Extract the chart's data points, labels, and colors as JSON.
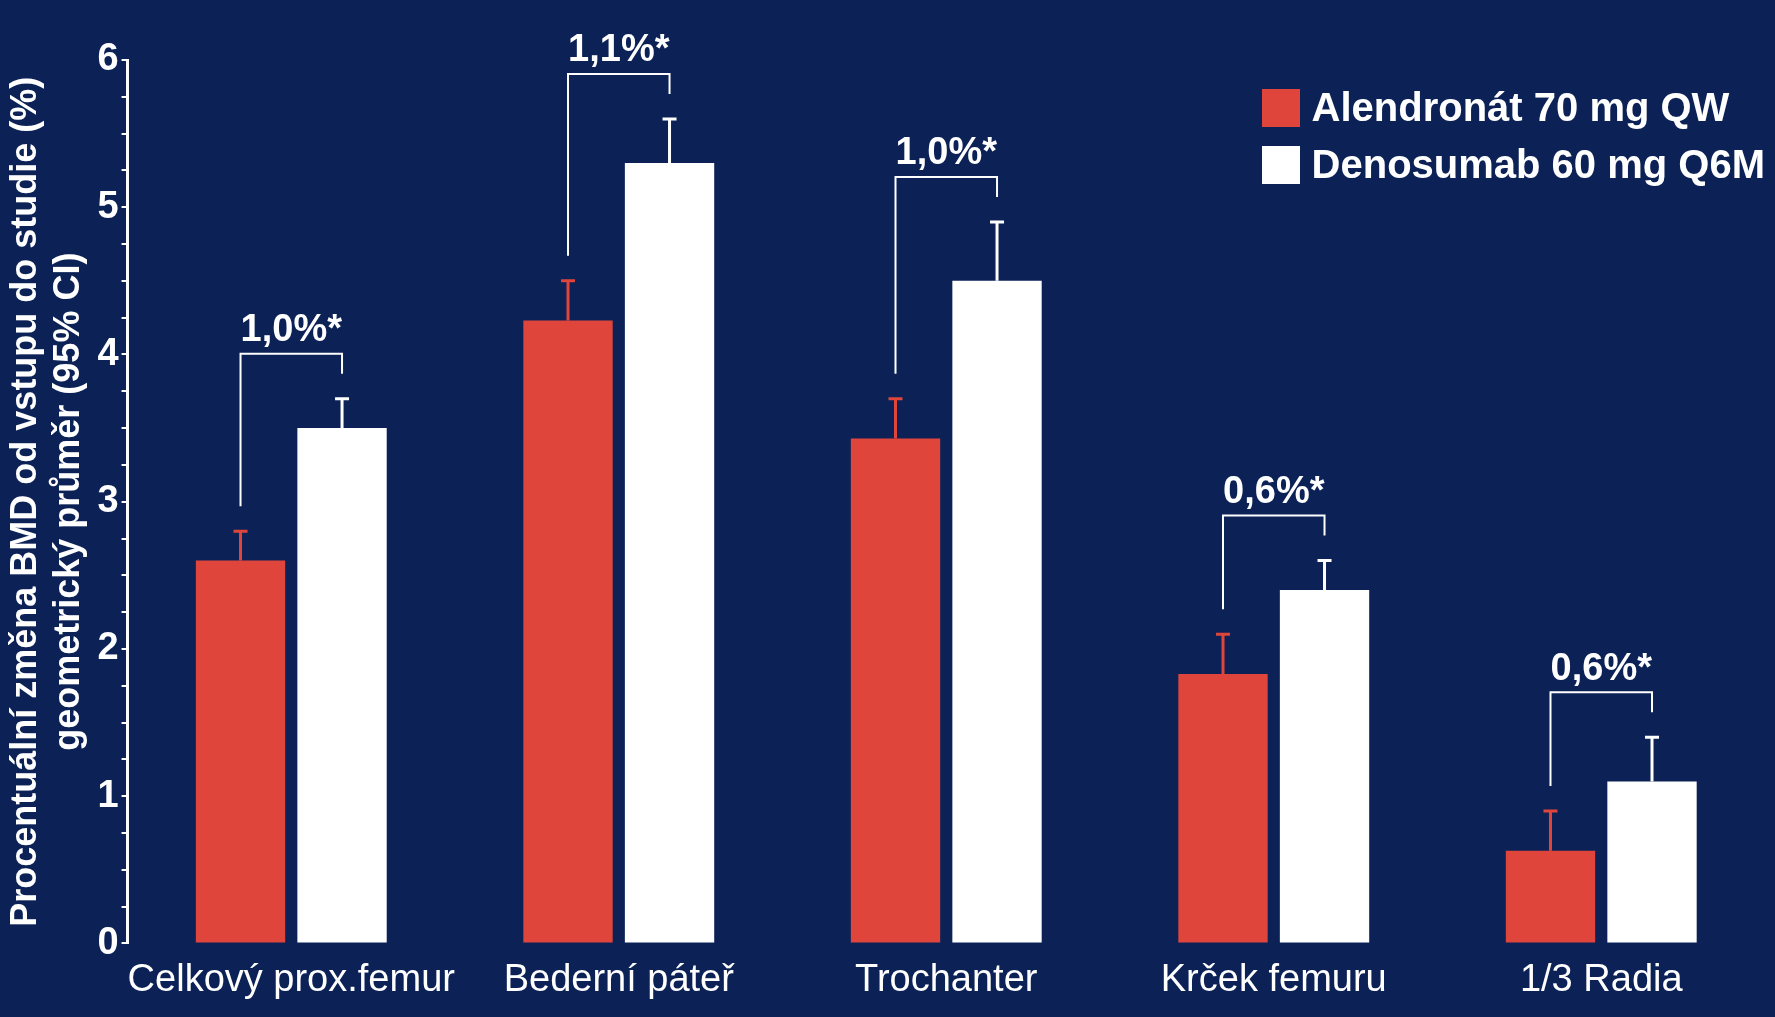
{
  "chart_data": {
    "type": "bar",
    "ylabel": "Procentuální změna BMD od vstupu do studie (%)\ngeometrický průměr (95% CI)",
    "categories": [
      "Celkový prox.femur",
      "Bederní páteř",
      "Trochanter",
      "Krček femuru",
      "1/3 Radia"
    ],
    "series": [
      {
        "name": "Alendronát 70 mg QW",
        "color": "#e0453c",
        "values": [
          2.6,
          4.23,
          3.43,
          1.83,
          0.63
        ],
        "errors": [
          [
            2.6,
            2.8
          ],
          [
            4.23,
            4.5
          ],
          [
            3.43,
            3.7
          ],
          [
            1.83,
            2.1
          ],
          [
            0.63,
            0.9
          ]
        ]
      },
      {
        "name": "Denosumab 60 mg Q6M",
        "color": "#ffffff",
        "values": [
          3.5,
          5.3,
          4.5,
          2.4,
          1.1
        ],
        "errors": [
          [
            3.5,
            3.7
          ],
          [
            5.3,
            5.6
          ],
          [
            4.5,
            4.9
          ],
          [
            2.4,
            2.6
          ],
          [
            1.1,
            1.4
          ]
        ]
      }
    ],
    "ylim": [
      0,
      6
    ],
    "yticks": [
      0,
      {
        "value": 0.25,
        "label": null
      },
      {
        "value": 0.5,
        "label": null
      },
      {
        "value": 0.75,
        "label": null
      },
      1,
      {
        "value": 1.25,
        "label": null
      },
      {
        "value": 1.5,
        "label": null
      },
      {
        "value": 1.75,
        "label": null
      },
      2,
      {
        "value": 2.25,
        "label": null
      },
      {
        "value": 2.5,
        "label": null
      },
      {
        "value": 2.75,
        "label": null
      },
      3,
      {
        "value": 3.25,
        "label": null
      },
      {
        "value": 3.5,
        "label": null
      },
      {
        "value": 3.75,
        "label": null
      },
      4,
      {
        "value": 4.25,
        "label": null
      },
      {
        "value": 4.5,
        "label": null
      },
      {
        "value": 4.75,
        "label": null
      },
      5,
      {
        "value": 5.25,
        "label": null
      },
      {
        "value": 5.5,
        "label": null
      },
      {
        "value": 5.75,
        "label": null
      },
      6
    ],
    "annotations": [
      "1,0%*",
      "1,1%*",
      "1,0%*",
      "0,6%*",
      "0,6%*"
    ],
    "grid": false,
    "legend": "top right"
  }
}
